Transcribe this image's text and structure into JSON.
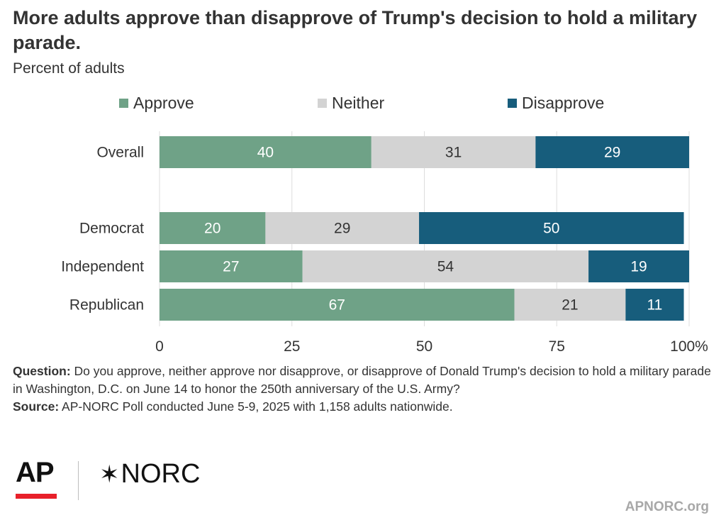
{
  "title": "More adults approve than disapprove of Trump's decision to hold a military parade.",
  "subtitle": "Percent of adults",
  "chart_data": {
    "type": "bar",
    "orientation": "horizontal",
    "stacked": true,
    "categories": [
      "Overall",
      "Democrat",
      "Independent",
      "Republican"
    ],
    "series": [
      {
        "name": "Approve",
        "color": "#6fa287",
        "label_color": "#ffffff",
        "values": [
          40,
          20,
          27,
          67
        ]
      },
      {
        "name": "Neither",
        "color": "#d3d3d3",
        "label_color": "#333333",
        "values": [
          31,
          29,
          54,
          21
        ]
      },
      {
        "name": "Disapprove",
        "color": "#175d7c",
        "label_color": "#ffffff",
        "values": [
          29,
          50,
          19,
          11
        ]
      }
    ],
    "xlim": [
      0,
      100
    ],
    "x_ticks": [
      "0",
      "25",
      "50",
      "75",
      "100%"
    ],
    "x_tick_values": [
      0,
      25,
      50,
      75,
      100
    ],
    "grid": true,
    "legend": "top"
  },
  "notes": {
    "question_label": "Question:",
    "question_text": " Do you approve, neither approve nor disapprove, or disapprove of Donald Trump's decision to hold a military parade in Washington, D.C. on June 14 to honor the 250th anniversary of the U.S. Army?",
    "source_label": "Source:",
    "source_text": " AP-NORC Poll conducted June 5-9, 2025 with 1,158 adults nationwide."
  },
  "logos": {
    "ap": "AP",
    "norc": "NORC",
    "norc_mark": "✶"
  },
  "footer": {
    "url": "APNORC.org"
  }
}
